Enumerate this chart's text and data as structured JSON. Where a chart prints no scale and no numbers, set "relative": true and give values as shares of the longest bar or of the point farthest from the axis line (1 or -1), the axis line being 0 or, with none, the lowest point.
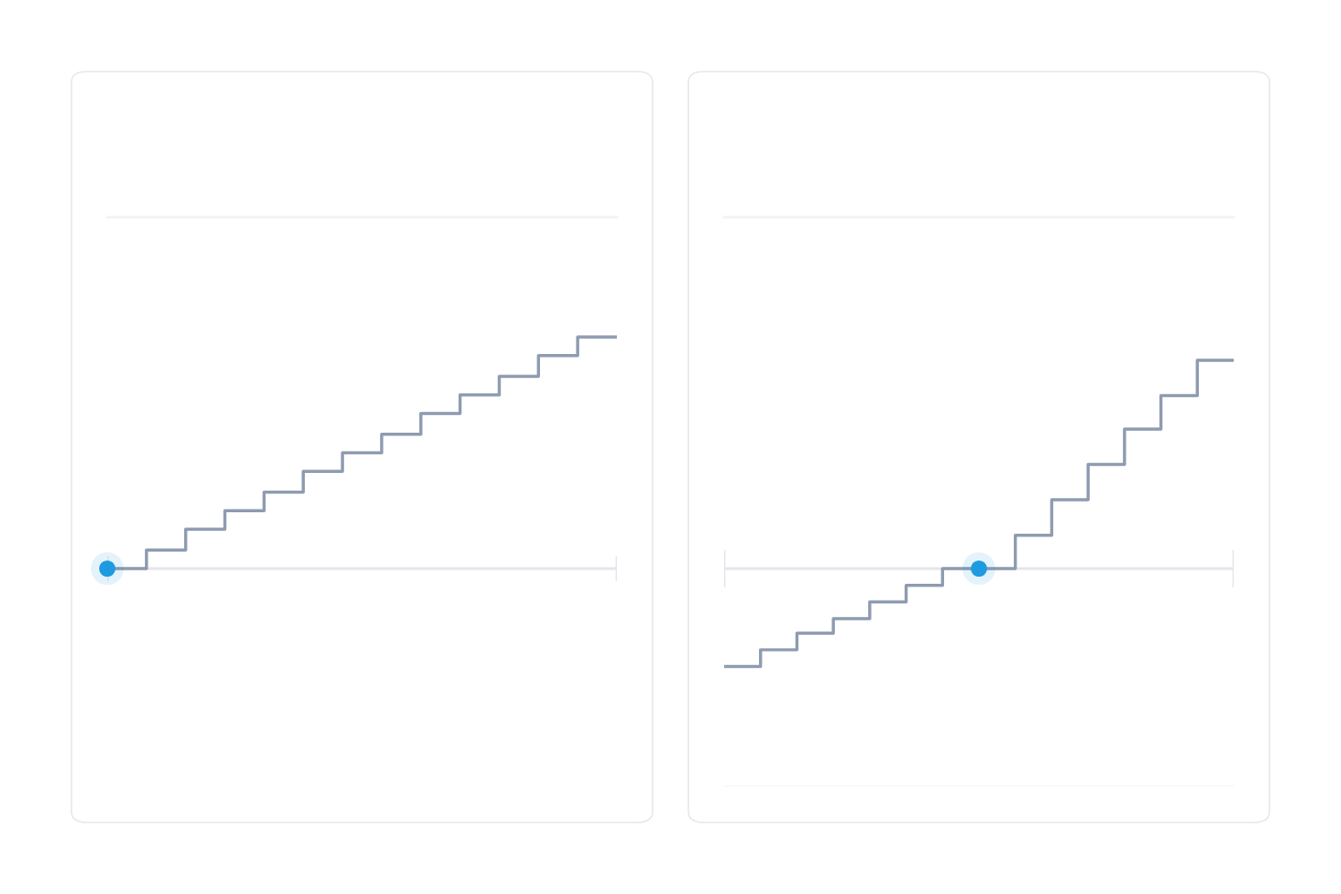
{
  "chart_data": [
    {
      "type": "step",
      "relative": true,
      "categories": [
        null,
        null,
        null,
        null,
        null,
        null,
        null,
        null,
        null,
        null,
        null,
        null,
        null,
        null
      ],
      "series": [
        {
          "color": "#8e9bb0",
          "values": [
            0,
            0.08,
            0.17,
            0.25,
            0.33,
            0.42,
            0.5,
            0.58,
            0.67,
            0.75,
            0.83,
            0.92,
            1,
            1
          ]
        }
      ]
    },
    {
      "type": "step",
      "relative": true,
      "categories": [
        null,
        null,
        null,
        null,
        null,
        null,
        null,
        null,
        null,
        null,
        null,
        null,
        null,
        null,
        null
      ],
      "series": [
        {
          "color": "#8e9bb0",
          "values": [
            -0.47,
            -0.39,
            -0.31,
            -0.24,
            -0.16,
            -0.08,
            0,
            0,
            0.16,
            0.33,
            0.5,
            0.67,
            0.83,
            1,
            1
          ]
        }
      ]
    }
  ]
}
